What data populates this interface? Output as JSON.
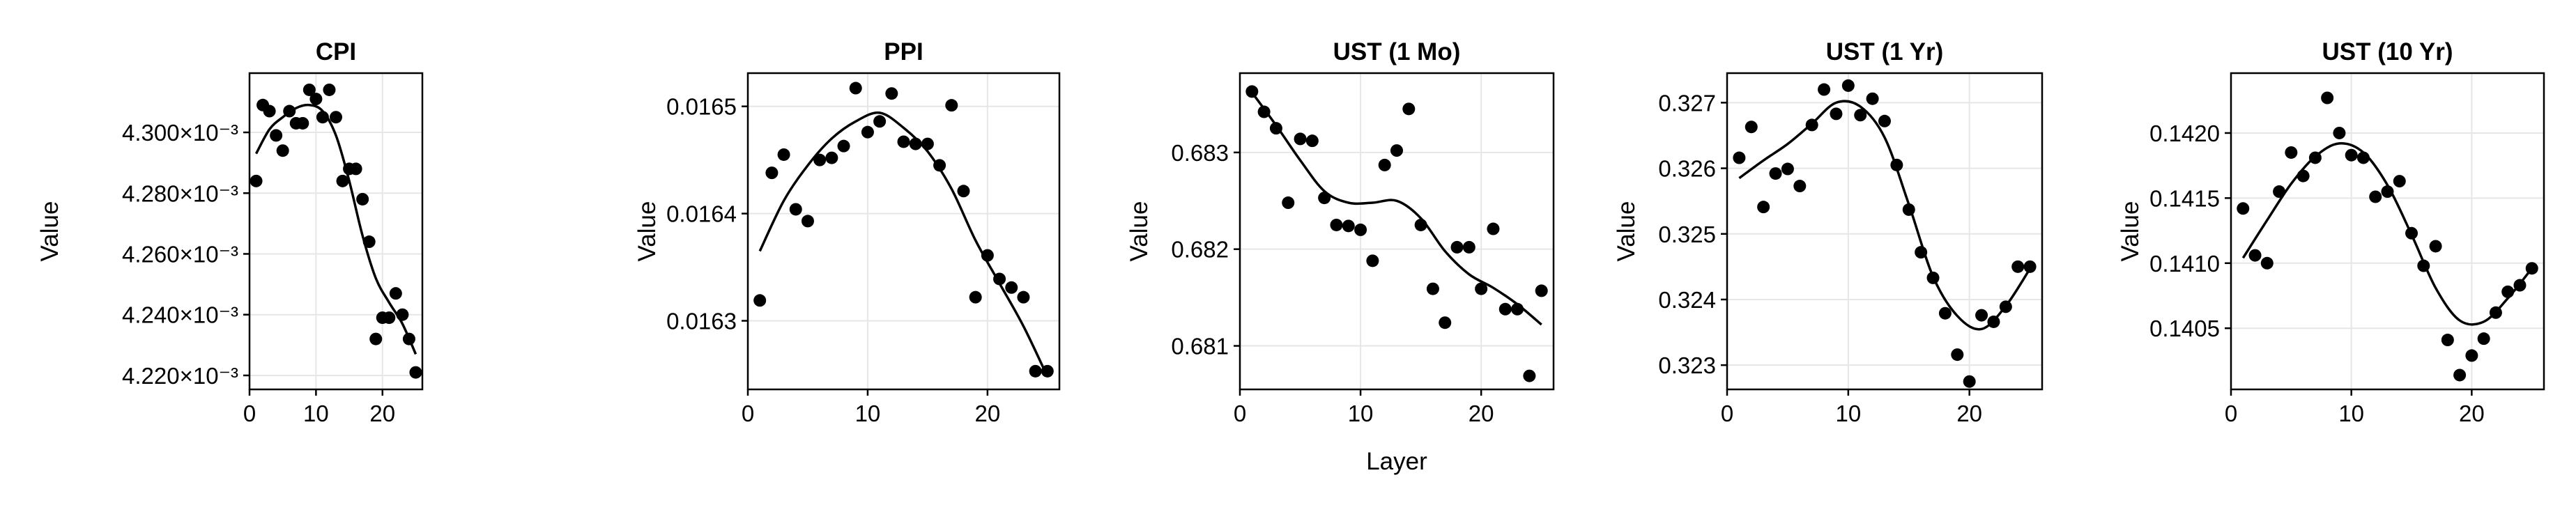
{
  "chart_data": [
    {
      "type": "scatter",
      "title": "CPI",
      "xlabel": "",
      "ylabel": "Value",
      "xlim": [
        0,
        26
      ],
      "ylim": [
        0.0042154,
        0.0043195
      ],
      "xticks": [
        0,
        10,
        20
      ],
      "xtick_labels": [
        "0",
        "10",
        "20"
      ],
      "yticks": [
        0.00422,
        0.00424,
        0.00426,
        0.00428,
        0.0043
      ],
      "ytick_labels": [
        "4.220×10⁻³",
        "4.240×10⁻³",
        "4.260×10⁻³",
        "4.280×10⁻³",
        "4.300×10⁻³"
      ],
      "grid": true,
      "points": {
        "x": [
          1,
          2,
          3,
          4,
          5,
          6,
          7,
          8,
          9,
          10,
          11,
          12,
          13,
          14,
          15,
          16,
          17,
          18,
          19,
          20,
          21,
          22,
          23,
          24,
          25
        ],
        "y": [
          0.004284,
          0.004309,
          0.004307,
          0.004299,
          0.004294,
          0.004307,
          0.004303,
          0.004303,
          0.004314,
          0.004311,
          0.004305,
          0.004314,
          0.004305,
          0.004284,
          0.004288,
          0.004288,
          0.004278,
          0.004264,
          0.004232,
          0.004239,
          0.004239,
          0.004247,
          0.00424,
          0.004232,
          0.004221
        ]
      },
      "fit": {
        "x": [
          1,
          3,
          5,
          7,
          9,
          11,
          13,
          15,
          17,
          19,
          21,
          23,
          25
        ],
        "y": [
          0.004293,
          0.004301,
          0.004305,
          0.004308,
          0.004309,
          0.004307,
          0.004299,
          0.004284,
          0.004266,
          0.004252,
          0.004244,
          0.004237,
          0.004227
        ]
      }
    },
    {
      "type": "scatter",
      "title": "PPI",
      "xlabel": "",
      "ylabel": "Value",
      "xlim": [
        0,
        26
      ],
      "ylim": [
        0.016236,
        0.016531
      ],
      "xticks": [
        0,
        10,
        20
      ],
      "xtick_labels": [
        "0",
        "10",
        "20"
      ],
      "yticks": [
        0.0163,
        0.0164,
        0.0165
      ],
      "ytick_labels": [
        "0.0163",
        "0.0164",
        "0.0165"
      ],
      "grid": true,
      "points": {
        "x": [
          1,
          2,
          3,
          4,
          5,
          6,
          7,
          8,
          9,
          10,
          11,
          12,
          13,
          14,
          15,
          16,
          17,
          18,
          19,
          20,
          21,
          22,
          23,
          24,
          25
        ],
        "y": [
          0.016319,
          0.016438,
          0.016455,
          0.016404,
          0.016393,
          0.01645,
          0.016452,
          0.016463,
          0.016517,
          0.016476,
          0.016486,
          0.016512,
          0.016467,
          0.016465,
          0.016465,
          0.016445,
          0.016501,
          0.016421,
          0.016322,
          0.016361,
          0.016339,
          0.016331,
          0.016322,
          0.016253,
          0.016253
        ]
      },
      "fit": {
        "x": [
          1,
          3,
          5,
          7,
          9,
          11,
          13,
          15,
          17,
          19,
          21,
          23,
          25
        ],
        "y": [
          0.016365,
          0.016412,
          0.016445,
          0.01647,
          0.016486,
          0.016494,
          0.01648,
          0.016458,
          0.016423,
          0.016375,
          0.016335,
          0.016295,
          0.016248
        ]
      }
    },
    {
      "type": "scatter",
      "title": "UST (1 Mo)",
      "xlabel": "Layer",
      "ylabel": "Value",
      "xlim": [
        0,
        26
      ],
      "ylim": [
        0.68055,
        0.68382
      ],
      "xticks": [
        0,
        10,
        20
      ],
      "xtick_labels": [
        "0",
        "10",
        "20"
      ],
      "yticks": [
        0.681,
        0.682,
        0.683
      ],
      "ytick_labels": [
        "0.681",
        "0.682",
        "0.683"
      ],
      "grid": true,
      "points": {
        "x": [
          1,
          2,
          3,
          4,
          5,
          6,
          7,
          8,
          9,
          10,
          11,
          12,
          13,
          14,
          15,
          16,
          17,
          18,
          19,
          20,
          21,
          22,
          23,
          24,
          25
        ],
        "y": [
          0.68363,
          0.68342,
          0.68325,
          0.68248,
          0.68314,
          0.68312,
          0.68253,
          0.68225,
          0.68224,
          0.6822,
          0.68188,
          0.68287,
          0.68302,
          0.68345,
          0.68225,
          0.68159,
          0.68124,
          0.68202,
          0.68202,
          0.68159,
          0.68221,
          0.68138,
          0.68138,
          0.68069,
          0.68157
        ]
      },
      "fit": {
        "x": [
          1,
          3,
          5,
          7,
          9,
          11,
          13,
          15,
          17,
          19,
          21,
          23,
          25
        ],
        "y": [
          0.68362,
          0.68328,
          0.68292,
          0.6826,
          0.68248,
          0.68248,
          0.6825,
          0.68232,
          0.68198,
          0.68174,
          0.6816,
          0.68143,
          0.68122
        ]
      }
    },
    {
      "type": "scatter",
      "title": "UST (1 Yr)",
      "xlabel": "",
      "ylabel": "Value",
      "xlim": [
        0,
        26
      ],
      "ylim": [
        0.32263,
        0.32745
      ],
      "xticks": [
        0,
        10,
        20
      ],
      "xtick_labels": [
        "0",
        "10",
        "20"
      ],
      "yticks": [
        0.323,
        0.324,
        0.325,
        0.326,
        0.327
      ],
      "ytick_labels": [
        "0.323",
        "0.324",
        "0.325",
        "0.326",
        "0.327"
      ],
      "grid": true,
      "points": {
        "x": [
          1,
          2,
          3,
          4,
          5,
          6,
          7,
          8,
          9,
          10,
          11,
          12,
          13,
          14,
          15,
          16,
          17,
          18,
          19,
          20,
          21,
          22,
          23,
          24,
          25
        ],
        "y": [
          0.32616,
          0.32663,
          0.32541,
          0.32592,
          0.32599,
          0.32573,
          0.32666,
          0.3272,
          0.32683,
          0.32726,
          0.32681,
          0.32706,
          0.32672,
          0.32605,
          0.32537,
          0.32472,
          0.32433,
          0.32379,
          0.32316,
          0.32275,
          0.32376,
          0.32366,
          0.32389,
          0.3245,
          0.3245
        ]
      },
      "fit": {
        "x": [
          1,
          3,
          5,
          7,
          9,
          11,
          13,
          15,
          17,
          19,
          21,
          23,
          25
        ],
        "y": [
          0.32585,
          0.32612,
          0.32637,
          0.32668,
          0.327,
          0.32694,
          0.32647,
          0.32545,
          0.32435,
          0.32375,
          0.32355,
          0.3239,
          0.32447
        ]
      }
    },
    {
      "type": "scatter",
      "title": "UST (10 Yr)",
      "xlabel": "",
      "ylabel": "Value",
      "xlim": [
        0,
        26
      ],
      "ylim": [
        0.14003,
        0.14246
      ],
      "xticks": [
        0,
        10,
        20
      ],
      "xtick_labels": [
        "0",
        "10",
        "20"
      ],
      "yticks": [
        0.1405,
        0.141,
        0.1415,
        0.142
      ],
      "ytick_labels": [
        "0.1405",
        "0.1410",
        "0.1415",
        "0.1420"
      ],
      "grid": true,
      "points": {
        "x": [
          1,
          2,
          3,
          4,
          5,
          6,
          7,
          8,
          9,
          10,
          11,
          12,
          13,
          14,
          15,
          16,
          17,
          18,
          19,
          20,
          21,
          22,
          23,
          24,
          25
        ],
        "y": [
          0.14142,
          0.14106,
          0.141,
          0.14155,
          0.14185,
          0.14167,
          0.14181,
          0.14227,
          0.142,
          0.14183,
          0.14181,
          0.14151,
          0.14155,
          0.14163,
          0.14123,
          0.14098,
          0.14113,
          0.14041,
          0.14014,
          0.14029,
          0.14042,
          0.14062,
          0.14078,
          0.14083,
          0.14096
        ]
      },
      "fit": {
        "x": [
          1,
          3,
          5,
          7,
          9,
          11,
          13,
          15,
          17,
          19,
          21,
          23,
          25
        ],
        "y": [
          0.14104,
          0.14133,
          0.14161,
          0.14182,
          0.14192,
          0.14185,
          0.1416,
          0.14122,
          0.14081,
          0.14056,
          0.14055,
          0.14073,
          0.14096
        ]
      }
    }
  ]
}
